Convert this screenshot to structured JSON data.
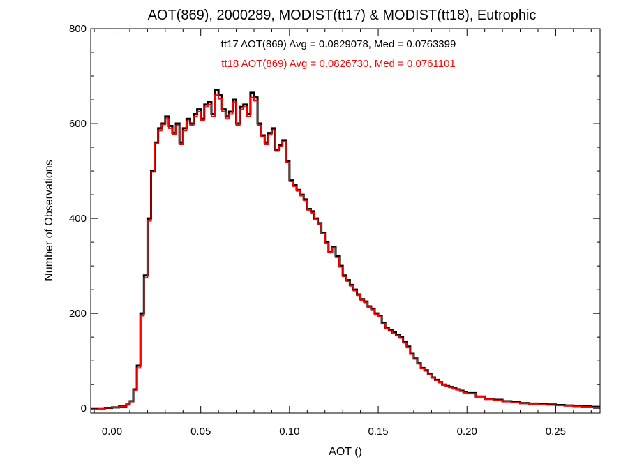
{
  "chart_data": {
    "type": "line",
    "title": "AOT(869), 2000289, MODIST(tt17) & MODIST(tt18), Eutrophic",
    "xlabel": "AOT ()",
    "ylabel": "Number of Observations",
    "xlim": [
      -0.012,
      0.275
    ],
    "ylim": [
      -10,
      800
    ],
    "x_ticks": [
      0.0,
      0.05,
      0.1,
      0.15,
      0.2,
      0.25
    ],
    "x_tick_labels": [
      "0.00",
      "0.05",
      "0.10",
      "0.15",
      "0.20",
      "0.25"
    ],
    "y_ticks": [
      0,
      200,
      400,
      600,
      800
    ],
    "y_tick_labels": [
      "0",
      "200",
      "400",
      "600",
      "800"
    ],
    "grid": false,
    "step": "histogram",
    "annotations": [
      {
        "text": "tt17 AOT(869) Avg = 0.0829078, Med = 0.0763399",
        "color": "#000000"
      },
      {
        "text": "tt18 AOT(869) Avg = 0.0826730, Med = 0.0761101",
        "color": "#ff0000"
      }
    ],
    "series": [
      {
        "color": "#000000",
        "x": [
          -0.012,
          -0.008,
          -0.004,
          0.0,
          0.004,
          0.008,
          0.01,
          0.012,
          0.014,
          0.016,
          0.018,
          0.02,
          0.022,
          0.024,
          0.026,
          0.028,
          0.03,
          0.032,
          0.034,
          0.036,
          0.038,
          0.04,
          0.042,
          0.044,
          0.046,
          0.048,
          0.05,
          0.052,
          0.054,
          0.056,
          0.058,
          0.06,
          0.062,
          0.064,
          0.066,
          0.068,
          0.07,
          0.072,
          0.074,
          0.076,
          0.078,
          0.08,
          0.082,
          0.084,
          0.086,
          0.088,
          0.09,
          0.092,
          0.094,
          0.096,
          0.098,
          0.1,
          0.102,
          0.104,
          0.106,
          0.108,
          0.11,
          0.112,
          0.114,
          0.116,
          0.118,
          0.12,
          0.122,
          0.124,
          0.126,
          0.128,
          0.13,
          0.132,
          0.134,
          0.136,
          0.138,
          0.14,
          0.142,
          0.144,
          0.146,
          0.148,
          0.15,
          0.152,
          0.154,
          0.156,
          0.158,
          0.16,
          0.162,
          0.164,
          0.166,
          0.168,
          0.17,
          0.172,
          0.174,
          0.176,
          0.178,
          0.18,
          0.182,
          0.184,
          0.186,
          0.188,
          0.19,
          0.192,
          0.194,
          0.196,
          0.198,
          0.2,
          0.205,
          0.21,
          0.215,
          0.22,
          0.225,
          0.23,
          0.235,
          0.24,
          0.245,
          0.25,
          0.255,
          0.26,
          0.265,
          0.27
        ],
        "values": [
          0,
          0,
          1,
          2,
          4,
          8,
          15,
          40,
          90,
          200,
          280,
          400,
          500,
          560,
          590,
          600,
          615,
          595,
          580,
          600,
          560,
          590,
          610,
          600,
          620,
          630,
          610,
          640,
          645,
          620,
          670,
          660,
          630,
          615,
          625,
          650,
          600,
          635,
          640,
          620,
          665,
          655,
          600,
          575,
          560,
          580,
          590,
          545,
          555,
          565,
          520,
          480,
          470,
          460,
          450,
          440,
          420,
          415,
          400,
          390,
          370,
          350,
          330,
          340,
          320,
          300,
          280,
          270,
          260,
          250,
          240,
          230,
          225,
          215,
          210,
          200,
          195,
          180,
          170,
          165,
          160,
          155,
          150,
          140,
          130,
          115,
          105,
          95,
          85,
          80,
          72,
          65,
          60,
          55,
          50,
          47,
          45,
          42,
          40,
          37,
          34,
          32,
          25,
          20,
          18,
          15,
          13,
          11,
          10,
          9,
          8,
          7,
          6,
          5,
          4,
          3
        ]
      },
      {
        "color": "#ff0000",
        "x": [
          -0.012,
          -0.008,
          -0.004,
          0.0,
          0.004,
          0.008,
          0.01,
          0.012,
          0.014,
          0.016,
          0.018,
          0.02,
          0.022,
          0.024,
          0.026,
          0.028,
          0.03,
          0.032,
          0.034,
          0.036,
          0.038,
          0.04,
          0.042,
          0.044,
          0.046,
          0.048,
          0.05,
          0.052,
          0.054,
          0.056,
          0.058,
          0.06,
          0.062,
          0.064,
          0.066,
          0.068,
          0.07,
          0.072,
          0.074,
          0.076,
          0.078,
          0.08,
          0.082,
          0.084,
          0.086,
          0.088,
          0.09,
          0.092,
          0.094,
          0.096,
          0.098,
          0.1,
          0.102,
          0.104,
          0.106,
          0.108,
          0.11,
          0.112,
          0.114,
          0.116,
          0.118,
          0.12,
          0.122,
          0.124,
          0.126,
          0.128,
          0.13,
          0.132,
          0.134,
          0.136,
          0.138,
          0.14,
          0.142,
          0.144,
          0.146,
          0.148,
          0.15,
          0.152,
          0.154,
          0.156,
          0.158,
          0.16,
          0.162,
          0.164,
          0.166,
          0.168,
          0.17,
          0.172,
          0.174,
          0.176,
          0.178,
          0.18,
          0.182,
          0.184,
          0.186,
          0.188,
          0.19,
          0.192,
          0.194,
          0.196,
          0.198,
          0.2,
          0.205,
          0.21,
          0.215,
          0.22,
          0.225,
          0.23,
          0.235,
          0.24,
          0.245,
          0.25,
          0.255,
          0.26,
          0.265,
          0.27
        ],
        "values": [
          0,
          0,
          1,
          2,
          4,
          8,
          14,
          38,
          85,
          195,
          275,
          395,
          498,
          558,
          585,
          598,
          610,
          590,
          578,
          596,
          556,
          585,
          605,
          596,
          615,
          625,
          606,
          635,
          640,
          615,
          660,
          652,
          625,
          610,
          620,
          645,
          596,
          630,
          635,
          615,
          655,
          648,
          596,
          572,
          556,
          576,
          586,
          542,
          552,
          562,
          518,
          478,
          468,
          458,
          448,
          438,
          418,
          412,
          398,
          388,
          368,
          348,
          328,
          338,
          318,
          298,
          278,
          268,
          258,
          248,
          238,
          228,
          223,
          213,
          208,
          198,
          193,
          178,
          168,
          163,
          158,
          153,
          148,
          138,
          128,
          114,
          104,
          94,
          84,
          79,
          71,
          64,
          59,
          54,
          49,
          46,
          44,
          41,
          39,
          36,
          33,
          31,
          24,
          19,
          17,
          14,
          12,
          10,
          9,
          8,
          7,
          6,
          5,
          4,
          3,
          2
        ]
      }
    ]
  }
}
